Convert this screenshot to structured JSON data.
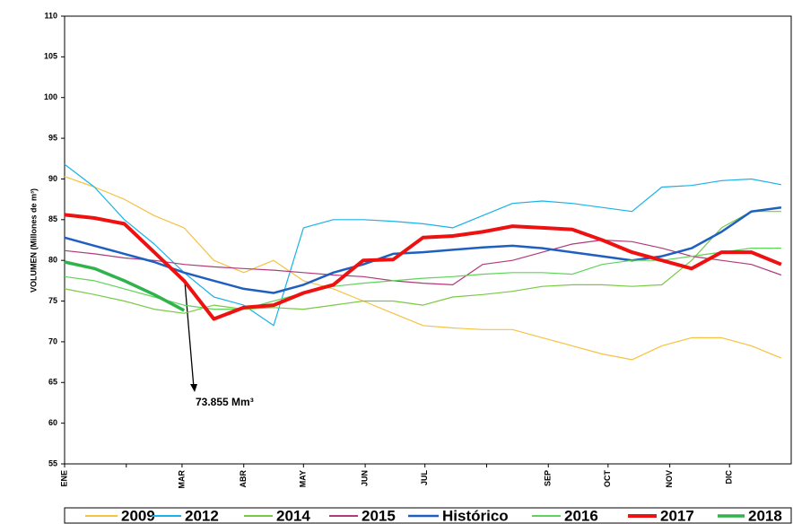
{
  "chart_data": {
    "type": "line",
    "y_label": "VOLUMEN (Millones de m³)",
    "annotation": "73.855 Mm³",
    "x": [
      0,
      15,
      30,
      45,
      60,
      75,
      90,
      105,
      120,
      135,
      150,
      165,
      180,
      195,
      210,
      225,
      240,
      255,
      270,
      285,
      300,
      315,
      330,
      345,
      360
    ],
    "xlim": [
      0,
      365
    ],
    "xticks": [
      {
        "value": 0,
        "label": "ENE"
      },
      {
        "value": 31,
        "label": null
      },
      {
        "value": 59,
        "label": "MAR"
      },
      {
        "value": 90,
        "label": "ABR"
      },
      {
        "value": 120,
        "label": "MAY"
      },
      {
        "value": 151,
        "label": "JUN"
      },
      {
        "value": 181,
        "label": "JUL"
      },
      {
        "value": 212,
        "label": null
      },
      {
        "value": 243,
        "label": "SEP"
      },
      {
        "value": 273,
        "label": "OCT"
      },
      {
        "value": 304,
        "label": "NOV"
      },
      {
        "value": 334,
        "label": "DIC"
      }
    ],
    "ylim": [
      55,
      110
    ],
    "yticks": [
      55,
      60,
      65,
      70,
      75,
      80,
      85,
      90,
      95,
      100,
      105,
      110
    ],
    "series": [
      {
        "name": "2009",
        "color": "#f5c242",
        "values": [
          90.3,
          89,
          87.5,
          85.5,
          84,
          80,
          78.5,
          80,
          77.5,
          76.5,
          75,
          73.5,
          72,
          71.7,
          71.5,
          71.5,
          70.5,
          69.5,
          68.5,
          67.8,
          69.5,
          70.5,
          70.5,
          69.5,
          68
        ]
      },
      {
        "name": "2012",
        "color": "#1ab2e8",
        "values": [
          91.8,
          89,
          85,
          82,
          78.5,
          75.5,
          74.5,
          72,
          84,
          85,
          85,
          84.8,
          84.5,
          84,
          85.5,
          87,
          87.3,
          87,
          86.5,
          86,
          89,
          89.2,
          89.8,
          90,
          89.3
        ]
      },
      {
        "name": "2014",
        "color": "#7ac943",
        "values": [
          76.5,
          75.8,
          75,
          74,
          73.5,
          74.5,
          74,
          74.2,
          74,
          74.5,
          75,
          75,
          74.5,
          75.5,
          75.8,
          76.2,
          76.8,
          77,
          77,
          76.8,
          77,
          80,
          84,
          86,
          86
        ]
      },
      {
        "name": "2015",
        "color": "#b03a7a",
        "values": [
          81.2,
          80.8,
          80.3,
          80,
          79.5,
          79.2,
          79,
          78.8,
          78.5,
          78.2,
          78,
          77.5,
          77.2,
          77,
          79.5,
          80,
          81,
          82,
          82.5,
          82.3,
          81.5,
          80.5,
          80,
          79.5,
          78.2
        ]
      },
      {
        "name": "Histórico",
        "color": "#1f5fbf",
        "values": [
          82.8,
          81.8,
          80.8,
          79.8,
          78.5,
          77.5,
          76.5,
          76,
          77,
          78.5,
          79.5,
          80.8,
          81,
          81.3,
          81.6,
          81.8,
          81.5,
          81,
          80.5,
          80,
          80.5,
          81.5,
          83.5,
          86,
          86.5
        ]
      },
      {
        "name": "2016",
        "color": "#5fd35a",
        "values": [
          78,
          77.5,
          76.5,
          75.5,
          74.5,
          74,
          74,
          75,
          76,
          76.8,
          77.2,
          77.5,
          77.8,
          78,
          78.3,
          78.5,
          78.5,
          78.3,
          79.5,
          80,
          80,
          80.5,
          81,
          81.5,
          81.5
        ]
      },
      {
        "name": "2017",
        "color": "#ee1111",
        "values": [
          85.6,
          85.2,
          84.5,
          81,
          77.5,
          72.8,
          74.2,
          74.5,
          76,
          77,
          80,
          80.1,
          82.8,
          83,
          83.5,
          84.2,
          84,
          83.8,
          82.5,
          81,
          80,
          79,
          81,
          81,
          79.5
        ]
      },
      {
        "name": "2018",
        "color": "#2fb34a",
        "values": [
          79.8,
          79,
          77.5,
          75.8,
          73.855,
          null,
          null,
          null,
          null,
          null,
          null,
          null,
          null,
          null,
          null,
          null,
          null,
          null,
          null,
          null,
          null,
          null,
          null,
          null,
          null
        ]
      }
    ]
  }
}
